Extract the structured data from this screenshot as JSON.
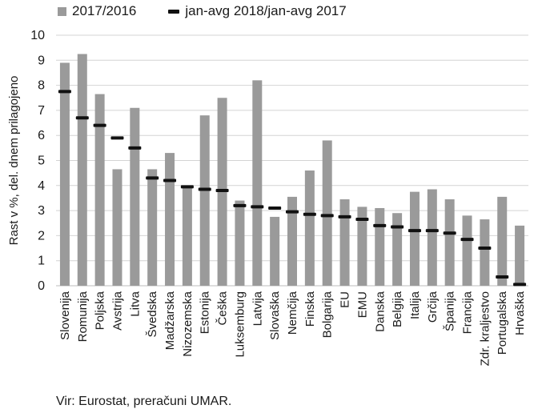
{
  "legend": {
    "bar_label": "2017/2016",
    "marker_label": "jan-avg 2018/jan-avg 2017"
  },
  "source": "Vir: Eurostat, preračuni UMAR.",
  "chart_data": {
    "type": "bar",
    "ylabel": "Rast v %, del. dnem prilagojeno",
    "ylim": [
      0,
      10
    ],
    "yticks": [
      0,
      1,
      2,
      3,
      4,
      5,
      6,
      7,
      8,
      9,
      10
    ],
    "categories": [
      "Slovenija",
      "Romunija",
      "Poljska",
      "Avstrija",
      "Litva",
      "Švedska",
      "Madžarska",
      "Nizozemska",
      "Estonija",
      "Češka",
      "Luksemburg",
      "Latvija",
      "Slovaška",
      "Nemčija",
      "Finska",
      "Bolgarija",
      "EU",
      "EMU",
      "Danska",
      "Belgija",
      "Italija",
      "Grčija",
      "Španija",
      "Francija",
      "Zdr. kraljestvo",
      "Portugalska",
      "Hrvaška"
    ],
    "series": [
      {
        "name": "2017/2016",
        "kind": "bar",
        "color": "#9a9a9a",
        "values": [
          8.9,
          9.25,
          7.65,
          4.65,
          7.1,
          4.65,
          5.3,
          3.95,
          6.8,
          7.5,
          3.4,
          8.2,
          2.75,
          3.55,
          4.6,
          5.8,
          3.45,
          3.15,
          3.1,
          2.9,
          3.75,
          3.85,
          3.45,
          2.8,
          2.65,
          3.55,
          2.4
        ]
      },
      {
        "name": "jan-avg 2018/jan-avg 2017",
        "kind": "marker",
        "color": "#111111",
        "values": [
          7.75,
          6.7,
          6.4,
          5.9,
          5.5,
          4.3,
          4.2,
          3.95,
          3.85,
          3.8,
          3.2,
          3.15,
          3.1,
          2.95,
          2.85,
          2.8,
          2.75,
          2.65,
          2.4,
          2.35,
          2.2,
          2.2,
          2.1,
          1.85,
          1.5,
          0.35,
          0.05
        ]
      }
    ],
    "grid": true,
    "legend_position": "top"
  }
}
